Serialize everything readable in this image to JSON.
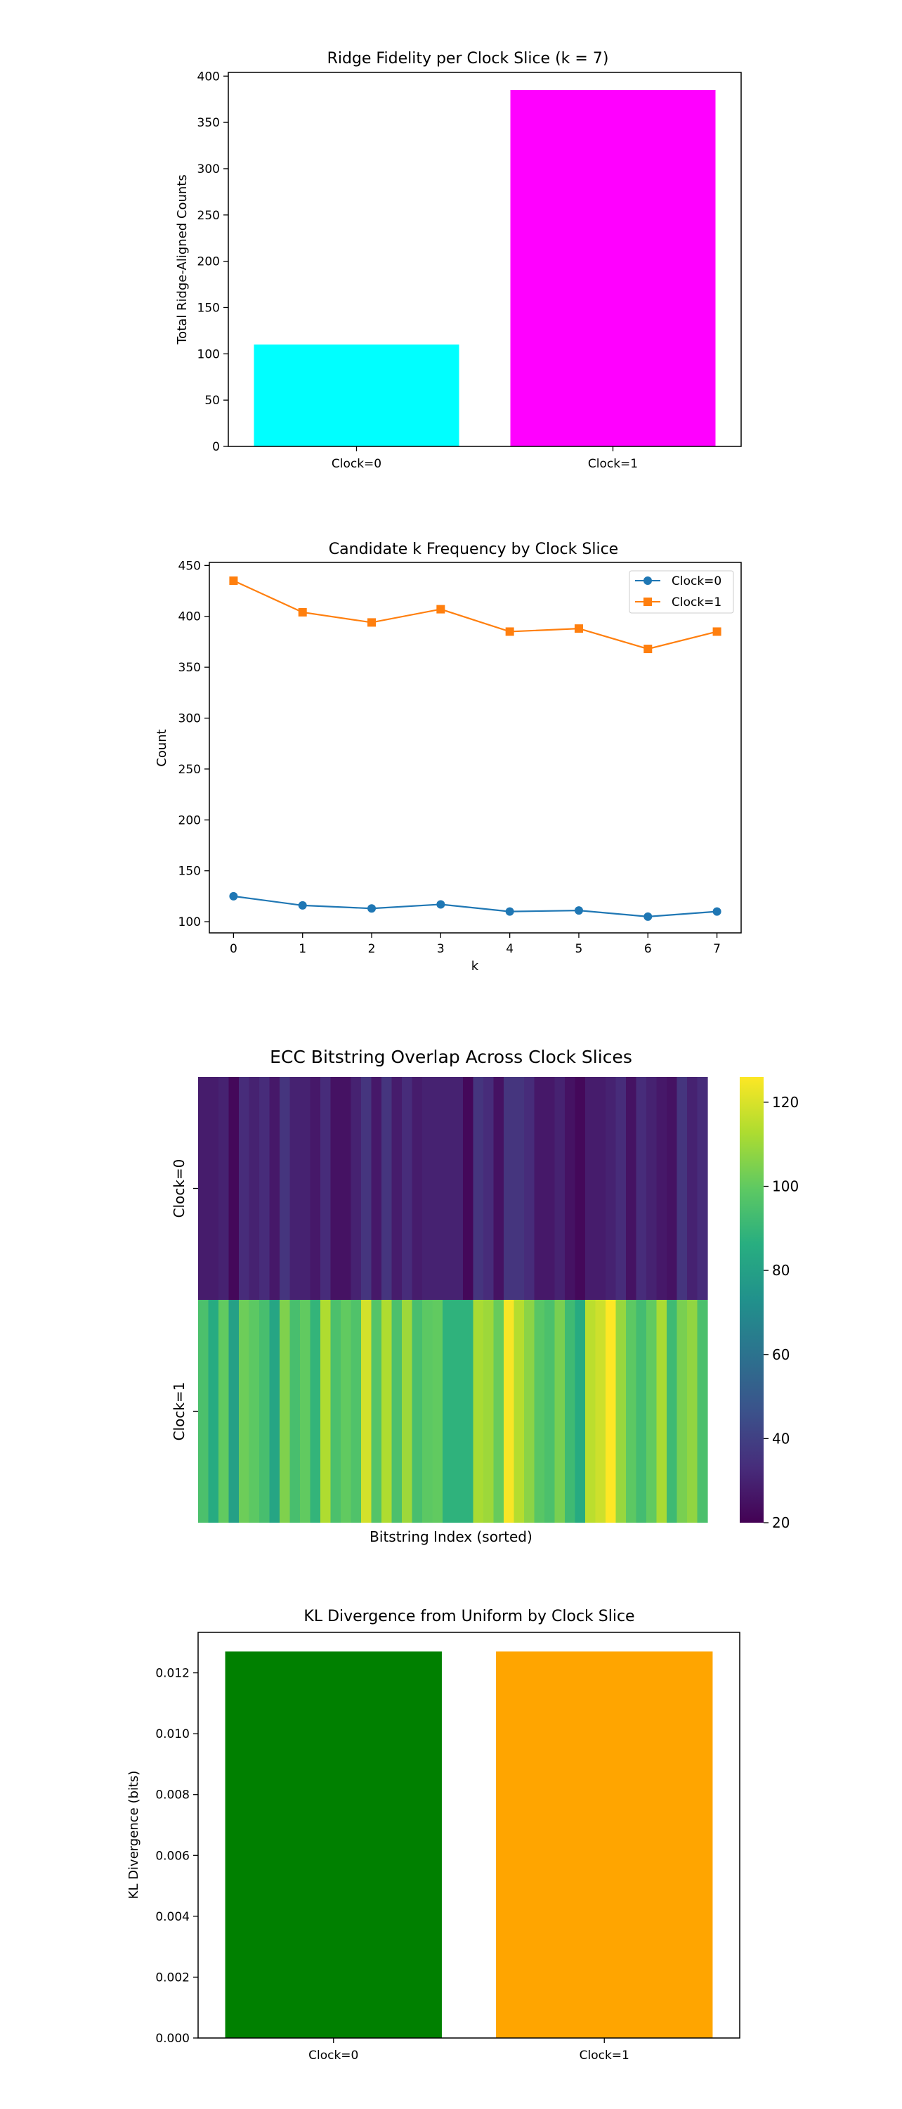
{
  "chart_data": [
    {
      "type": "bar",
      "title": "Ridge Fidelity per Clock Slice (k = 7)",
      "xlabel": "",
      "ylabel": "Total Ridge-Aligned Counts",
      "categories": [
        "Clock=0",
        "Clock=1"
      ],
      "values": [
        110,
        385
      ],
      "colors": [
        "#00ffff",
        "#ff00ff"
      ],
      "ylim": [
        0,
        404
      ],
      "yticks": [
        "0",
        "50",
        "100",
        "150",
        "200",
        "250",
        "300",
        "350",
        "400"
      ],
      "grid": false
    },
    {
      "type": "line",
      "title": "Candidate k Frequency by Clock Slice",
      "xlabel": "k",
      "ylabel": "Count",
      "x": [
        0,
        1,
        2,
        3,
        4,
        5,
        6,
        7
      ],
      "xticks": [
        "0",
        "1",
        "2",
        "3",
        "4",
        "5",
        "6",
        "7"
      ],
      "yticks": [
        "100",
        "150",
        "200",
        "250",
        "300",
        "350",
        "400",
        "450"
      ],
      "ylim": [
        89,
        453
      ],
      "legend_position": "top-right",
      "grid": false,
      "series": [
        {
          "name": "Clock=0",
          "color": "#1f77b4",
          "marker": "circle",
          "values": [
            125,
            116,
            113,
            117,
            110,
            111,
            105,
            110
          ]
        },
        {
          "name": "Clock=1",
          "color": "#ff7f0e",
          "marker": "square",
          "values": [
            435,
            404,
            394,
            407,
            385,
            388,
            368,
            385
          ]
        }
      ]
    },
    {
      "type": "heatmap",
      "title": "ECC Bitstring Overlap Across Clock Slices",
      "xlabel": "Bitstring Index (sorted)",
      "ylabel": "",
      "rows": [
        "Clock=0",
        "Clock=1"
      ],
      "colorbar_ticks": [
        "20",
        "40",
        "60",
        "80",
        "100",
        "120"
      ],
      "color_range": [
        20,
        126
      ],
      "values": [
        [
          28,
          28,
          30,
          22,
          33,
          30,
          33,
          27,
          36,
          30,
          30,
          27,
          33,
          25,
          25,
          30,
          36,
          27,
          36,
          28,
          33,
          28,
          30,
          30,
          30,
          30,
          22,
          36,
          33,
          25,
          36,
          36,
          33,
          27,
          27,
          30,
          25,
          22,
          28,
          28,
          30,
          33,
          25,
          33,
          30,
          27,
          25,
          36,
          30,
          33
        ],
        [
          95,
          85,
          100,
          80,
          102,
          99,
          94,
          82,
          105,
          94,
          100,
          89,
          113,
          95,
          100,
          96,
          119,
          97,
          113,
          95,
          110,
          94,
          99,
          100,
          88,
          88,
          88,
          112,
          110,
          101,
          125,
          114,
          107,
          98,
          95,
          104,
          92,
          85,
          115,
          118,
          126,
          109,
          99,
          93,
          100,
          112,
          92,
          104,
          108,
          95
        ]
      ]
    },
    {
      "type": "bar",
      "title": "KL Divergence from Uniform by Clock Slice",
      "xlabel": "",
      "ylabel": "KL Divergence (bits)",
      "categories": [
        "Clock=0",
        "Clock=1"
      ],
      "values": [
        0.0127,
        0.0127
      ],
      "colors": [
        "#008000",
        "#ffa500"
      ],
      "ylim": [
        0,
        0.01333
      ],
      "yticks": [
        "0.000",
        "0.002",
        "0.004",
        "0.006",
        "0.008",
        "0.010",
        "0.012"
      ],
      "grid": false
    }
  ]
}
